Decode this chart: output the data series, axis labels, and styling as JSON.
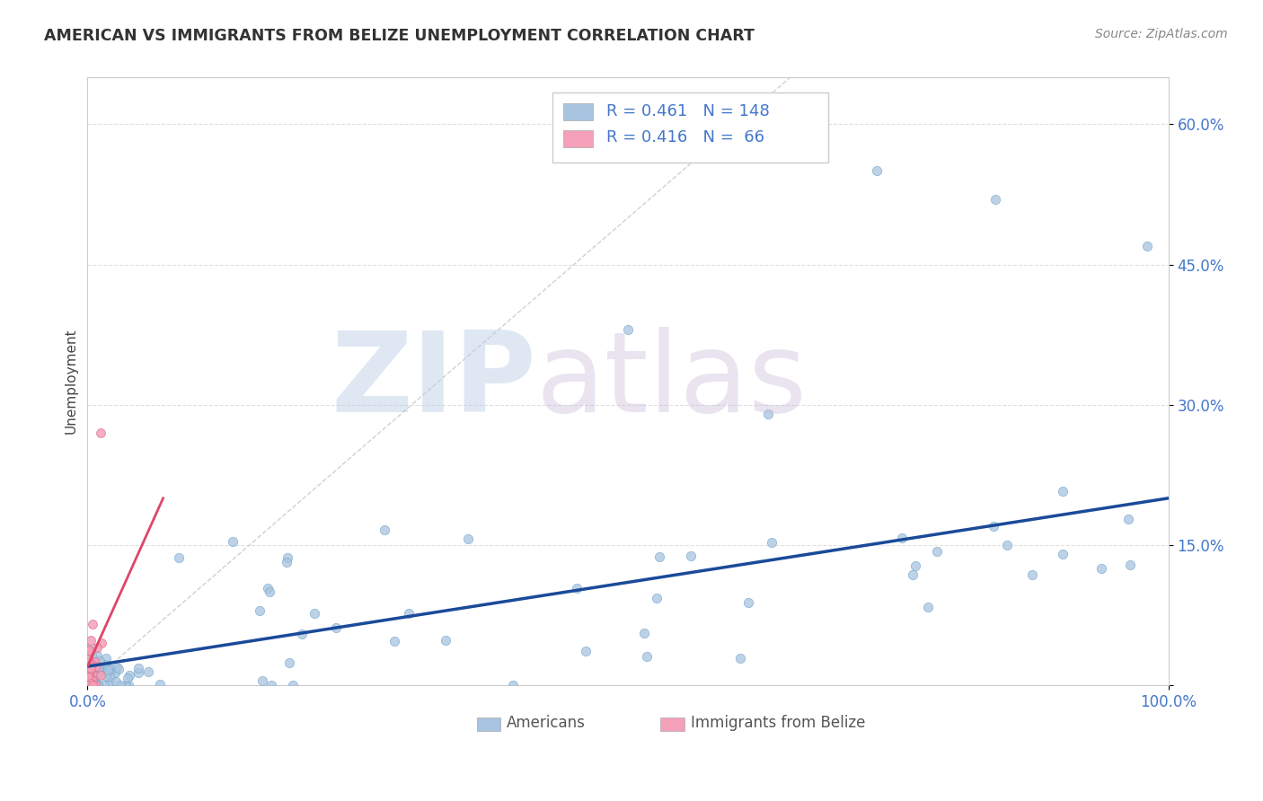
{
  "title": "AMERICAN VS IMMIGRANTS FROM BELIZE UNEMPLOYMENT CORRELATION CHART",
  "source": "Source: ZipAtlas.com",
  "ylabel": "Unemployment",
  "xlim": [
    0,
    1.0
  ],
  "ylim": [
    0,
    0.65
  ],
  "blue_color": "#a8c4e0",
  "blue_edge_color": "#7aaace",
  "blue_line_color": "#1a4a99",
  "pink_color": "#f4a0b8",
  "pink_edge_color": "#e07090",
  "pink_line_color": "#e0456a",
  "title_color": "#333333",
  "source_color": "#888888",
  "axis_label_color": "#444444",
  "tick_label_color": "#4477cc",
  "grid_color": "#dddddd",
  "legend_text_color": "#4477cc",
  "legend_r1": "R = 0.461",
  "legend_n1": "N = 148",
  "legend_r2": "R = 0.416",
  "legend_n2": "N =  66"
}
